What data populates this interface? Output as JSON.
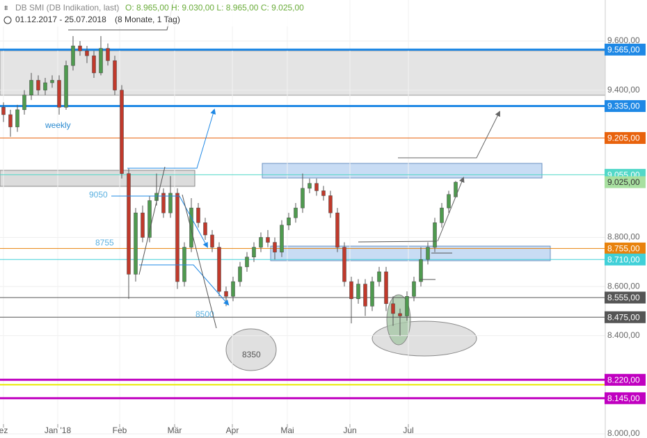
{
  "header": {
    "name": "DB SMI (DB Indikation, last)",
    "ohlc": "O: 8.965,00  H: 9.030,00  L: 8.965,00  C: 9.025,00",
    "range": "01.12.2017 - 25.07.2018",
    "period": "(8 Monate, 1 Tag)"
  },
  "chart_data": {
    "type": "candlestick",
    "up_color": "#4f9a4f",
    "down_color": "#c0392b",
    "xlim": [
      -0.5,
      86.5
    ],
    "xticks": [
      {
        "value": 0,
        "label": "ez"
      },
      {
        "value": 7.8,
        "label": "Jan '18"
      },
      {
        "value": 16.7,
        "label": "Feb"
      },
      {
        "value": 24.6,
        "label": "Mär"
      },
      {
        "value": 32.9,
        "label": "Apr"
      },
      {
        "value": 40.8,
        "label": "Mai"
      },
      {
        "value": 49.8,
        "label": "Jun"
      },
      {
        "value": 58.2,
        "label": "Jul"
      }
    ],
    "ylim": [
      7983,
      9767
    ],
    "yticks": [
      {
        "value": 9600,
        "label": "9.600,00"
      },
      {
        "value": 9400,
        "label": "9.400,00"
      },
      {
        "value": 8800,
        "label": "8.800,00"
      },
      {
        "value": 8600,
        "label": "8.600,00"
      },
      {
        "value": 8400,
        "label": "8.400,00"
      },
      {
        "value": 8000,
        "label": "8.000,00"
      }
    ],
    "grid": true,
    "open": [
      9330,
      9300,
      9250,
      9320,
      9380,
      9440,
      9400,
      9430,
      9440,
      9330,
      9500,
      9580,
      9560,
      9540,
      9470,
      9570,
      9520,
      9400,
      9060,
      8650,
      8900,
      8800,
      8950,
      8980,
      8900,
      8980,
      8620,
      8760,
      8920,
      8860,
      8810,
      8760,
      8580,
      8560,
      8620,
      8680,
      8720,
      8760,
      8800,
      8780,
      8740,
      8850,
      8880,
      8920,
      9000,
      9020,
      8990,
      8970,
      8900,
      8760,
      8620,
      8550,
      8610,
      8520,
      8620,
      8660,
      8530,
      8490,
      8480,
      8560,
      8620,
      8710,
      8760,
      8860,
      8920,
      8965
    ],
    "high": [
      9350,
      9320,
      9340,
      9400,
      9470,
      9460,
      9450,
      9460,
      9460,
      9520,
      9620,
      9600,
      9580,
      9560,
      9620,
      9590,
      9540,
      9420,
      9080,
      8920,
      8930,
      8970,
      9060,
      9000,
      9050,
      9000,
      8780,
      8960,
      8940,
      8880,
      8830,
      8780,
      8600,
      8640,
      8700,
      8740,
      8780,
      8820,
      8830,
      8800,
      8870,
      8900,
      8940,
      9060,
      9040,
      9040,
      9010,
      8990,
      8920,
      8780,
      8640,
      8630,
      8630,
      8640,
      8680,
      8680,
      8560,
      8510,
      8580,
      8640,
      8760,
      8780,
      8880,
      8940,
      8990,
      9030
    ],
    "low": [
      9270,
      9210,
      9230,
      9300,
      9360,
      9380,
      9380,
      9410,
      9300,
      9320,
      9480,
      9540,
      9510,
      9450,
      9460,
      9500,
      9380,
      9040,
      8550,
      8620,
      8780,
      8780,
      8930,
      8880,
      8880,
      8590,
      8600,
      8740,
      8840,
      8790,
      8740,
      8560,
      8520,
      8540,
      8600,
      8660,
      8700,
      8740,
      8760,
      8710,
      8720,
      8830,
      8860,
      8900,
      8980,
      8970,
      8950,
      8880,
      8740,
      8600,
      8450,
      8530,
      8480,
      8500,
      8600,
      8500,
      8440,
      8400,
      8460,
      8540,
      8600,
      8690,
      8740,
      8840,
      8900,
      8965
    ],
    "close": [
      9300,
      9250,
      9320,
      9380,
      9440,
      9400,
      9430,
      9440,
      9330,
      9500,
      9580,
      9560,
      9540,
      9470,
      9570,
      9520,
      9400,
      9060,
      8650,
      8900,
      8800,
      8950,
      8980,
      8900,
      8980,
      8620,
      8760,
      8920,
      8860,
      8810,
      8760,
      8580,
      8560,
      8620,
      8680,
      8720,
      8760,
      8800,
      8780,
      8740,
      8850,
      8880,
      8920,
      9000,
      9020,
      8990,
      8970,
      8900,
      8760,
      8620,
      8550,
      8610,
      8520,
      8620,
      8660,
      8530,
      8490,
      8480,
      8560,
      8620,
      8710,
      8760,
      8860,
      8920,
      8975,
      9025
    ],
    "levels": [
      {
        "value": 9565,
        "label": "9.565,00",
        "color": "#1e88e5",
        "width": 3
      },
      {
        "value": 9335,
        "label": "9.335,00",
        "color": "#1e88e5",
        "width": 3
      },
      {
        "value": 9205,
        "label": "9.205,00",
        "color": "#e8620c",
        "width": 1
      },
      {
        "value": 9055,
        "label": "9.055,00",
        "color": "#52d8c8",
        "width": 1
      },
      {
        "value": 9025,
        "label": "9.025,00",
        "color": "#a8e0a0",
        "width": 0
      },
      {
        "value": 8755,
        "label": "8.755,00",
        "color": "#e8820c",
        "width": 1
      },
      {
        "value": 8710,
        "label": "8.710,00",
        "color": "#40d0d8",
        "width": 1
      },
      {
        "value": 8555,
        "label": "8.555,00",
        "color": "#555555",
        "width": 1
      },
      {
        "value": 8475,
        "label": "8.475,00",
        "color": "#555555",
        "width": 1
      },
      {
        "value": 8200,
        "color": "#e8e800",
        "width": 2
      },
      {
        "value": 8220,
        "label": "8.220,00",
        "color": "#c000c0",
        "width": 3
      },
      {
        "value": 8145,
        "label": "8.145,00",
        "color": "#c000c0",
        "width": 3
      }
    ],
    "annotations": [
      {
        "text": "weekly",
        "color": "#2a8ad0"
      },
      {
        "text": "9050",
        "color": "#5ab0e0"
      },
      {
        "text": "8755",
        "color": "#5ab0e0"
      },
      {
        "text": "8500",
        "color": "#5ab0e0"
      },
      {
        "text": "8350",
        "color": "#555555"
      }
    ]
  }
}
